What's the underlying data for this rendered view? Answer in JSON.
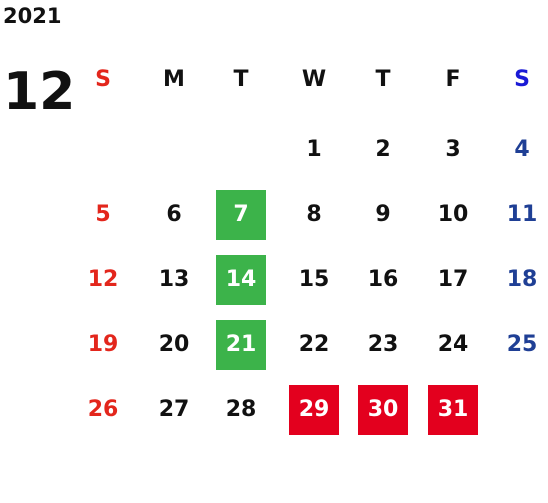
{
  "year": "2021",
  "month": "12",
  "weekdays": [
    {
      "label": "S",
      "color": "#e3261c",
      "day_color": "#e3261c"
    },
    {
      "label": "M",
      "color": "#111111",
      "day_color": "#111111"
    },
    {
      "label": "T",
      "color": "#111111",
      "day_color": "#111111"
    },
    {
      "label": "W",
      "color": "#111111",
      "day_color": "#111111"
    },
    {
      "label": "T",
      "color": "#111111",
      "day_color": "#111111"
    },
    {
      "label": "F",
      "color": "#111111",
      "day_color": "#111111"
    },
    {
      "label": "S",
      "color": "#1a1ad6",
      "day_color": "#1f3f95"
    }
  ],
  "weeks": [
    [
      null,
      null,
      null,
      {
        "day": 1
      },
      {
        "day": 2
      },
      {
        "day": 3
      },
      {
        "day": 4
      }
    ],
    [
      {
        "day": 5
      },
      {
        "day": 6
      },
      {
        "day": 7,
        "highlight": "#3cb34a"
      },
      {
        "day": 8
      },
      {
        "day": 9
      },
      {
        "day": 10
      },
      {
        "day": 11
      }
    ],
    [
      {
        "day": 12
      },
      {
        "day": 13
      },
      {
        "day": 14,
        "highlight": "#3cb34a"
      },
      {
        "day": 15
      },
      {
        "day": 16
      },
      {
        "day": 17
      },
      {
        "day": 18
      }
    ],
    [
      {
        "day": 19
      },
      {
        "day": 20
      },
      {
        "day": 21,
        "highlight": "#3cb34a"
      },
      {
        "day": 22
      },
      {
        "day": 23
      },
      {
        "day": 24
      },
      {
        "day": 25
      }
    ],
    [
      {
        "day": 26
      },
      {
        "day": 27
      },
      {
        "day": 28
      },
      {
        "day": 29,
        "highlight": "#e3001e"
      },
      {
        "day": 30,
        "highlight": "#e3001e"
      },
      {
        "day": 31,
        "highlight": "#e3001e"
      },
      null
    ]
  ]
}
